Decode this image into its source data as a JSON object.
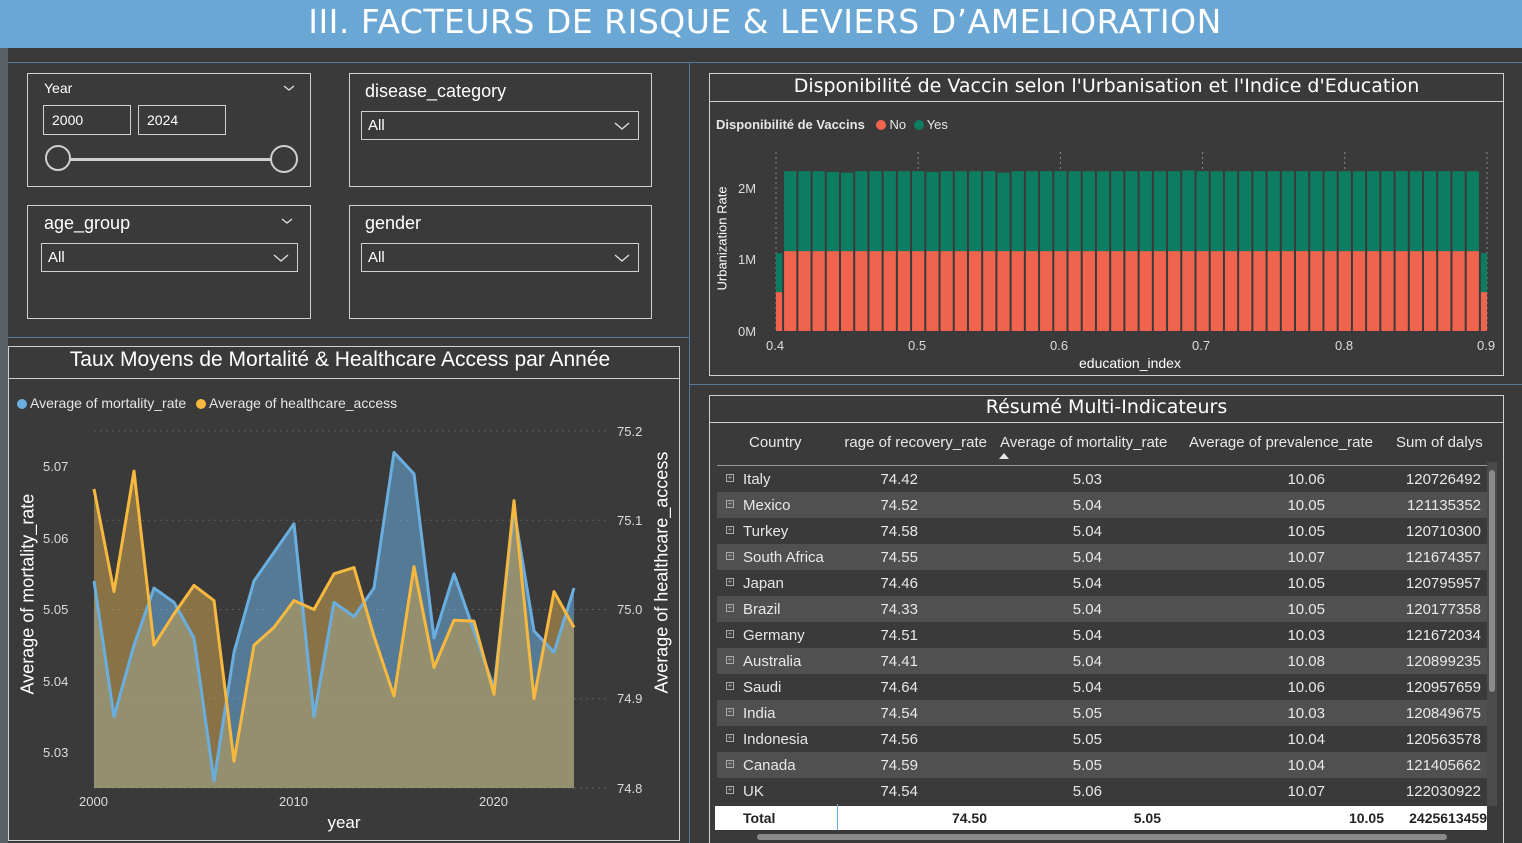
{
  "page": {
    "title": "III. FACTEURS DE RISQUE & LEVIERS D’AMELIORATION"
  },
  "colors": {
    "header": "#6aa7d5",
    "no": "#f0644f",
    "yes": "#0d7d62",
    "mortality": "#6aaee0",
    "healthcare": "#f7b840",
    "background": "#3a3a3a"
  },
  "slicers": {
    "year": {
      "label": "Year",
      "from": "2000",
      "to": "2024"
    },
    "disease_category": {
      "label": "disease_category",
      "value": "All"
    },
    "age_group": {
      "label": "age_group",
      "value": "All"
    },
    "gender": {
      "label": "gender",
      "value": "All"
    }
  },
  "vaccine_chart": {
    "title": "Disponibilité de Vaccin selon l'Urbanisation et l'Indice d'Education",
    "legend_title": "Disponibilité de Vaccins",
    "legend_items": [
      "No",
      "Yes"
    ],
    "ylabel": "Urbanization Rate",
    "xlabel": "education_index",
    "yticks": [
      "0M",
      "1M",
      "2M"
    ],
    "xticks": [
      "0.4",
      "0.5",
      "0.6",
      "0.7",
      "0.8",
      "0.9"
    ]
  },
  "line_chart": {
    "title": "Taux Moyens de Mortalité & Healthcare Access par Année",
    "legend_items": [
      "Average of mortality_rate",
      "Average of healthcare_access"
    ],
    "ylabel_left": "Average of mortality_rate",
    "ylabel_right": "Average of healthcare_access",
    "xlabel": "year",
    "yticks_left": [
      "5.03",
      "5.04",
      "5.05",
      "5.06",
      "5.07"
    ],
    "yticks_right": [
      "74.8",
      "74.9",
      "75.0",
      "75.1",
      "75.2"
    ],
    "xticks": [
      "2000",
      "2010",
      "2020"
    ]
  },
  "chart_data": [
    {
      "type": "line",
      "title": "Taux Moyens de Mortalité & Healthcare Access par Année",
      "xlabel": "year",
      "ylabel": "Average of mortality_rate",
      "x": [
        2000,
        2001,
        2002,
        2003,
        2004,
        2005,
        2006,
        2007,
        2008,
        2009,
        2010,
        2011,
        2012,
        2013,
        2014,
        2015,
        2016,
        2017,
        2018,
        2019,
        2020,
        2021,
        2022,
        2023,
        2024
      ],
      "series": [
        {
          "name": "Average of mortality_rate",
          "axis": "left",
          "values": [
            5.054,
            5.035,
            5.045,
            5.053,
            5.051,
            5.046,
            5.026,
            5.044,
            5.054,
            5.058,
            5.062,
            5.035,
            5.051,
            5.049,
            5.053,
            5.072,
            5.069,
            5.046,
            5.055,
            5.047,
            5.039,
            5.064,
            5.047,
            5.044,
            5.053
          ]
        },
        {
          "name": "Average of healthcare_access",
          "axis": "right",
          "values": [
            75.135,
            75.02,
            75.155,
            74.96,
            74.995,
            75.027,
            75.01,
            74.83,
            74.96,
            74.98,
            75.01,
            75.0,
            75.04,
            75.047,
            74.97,
            74.903,
            75.048,
            74.935,
            74.988,
            74.987,
            74.905,
            75.122,
            74.9,
            75.02,
            74.98
          ]
        }
      ],
      "ylim_left": [
        5.025,
        5.075
      ],
      "ylim_right": [
        74.8,
        75.2
      ],
      "grid": true,
      "legend": "top-left"
    },
    {
      "type": "bar",
      "stacked": true,
      "title": "Disponibilité de Vaccin selon l'Urbanisation et l'Indice d'Education",
      "xlabel": "education_index",
      "ylabel": "Urbanization Rate",
      "x": [
        0.4,
        0.41,
        0.42,
        0.43,
        0.44,
        0.45,
        0.46,
        0.47,
        0.48,
        0.49,
        0.5,
        0.51,
        0.52,
        0.53,
        0.54,
        0.55,
        0.56,
        0.57,
        0.58,
        0.59,
        0.6,
        0.61,
        0.62,
        0.63,
        0.64,
        0.65,
        0.66,
        0.67,
        0.68,
        0.69,
        0.7,
        0.71,
        0.72,
        0.73,
        0.74,
        0.75,
        0.76,
        0.77,
        0.78,
        0.79,
        0.8,
        0.81,
        0.82,
        0.83,
        0.84,
        0.85,
        0.86,
        0.87,
        0.88,
        0.89,
        0.9
      ],
      "series": [
        {
          "name": "No",
          "values": [
            540000,
            1110000,
            1110000,
            1110000,
            1110000,
            1110000,
            1110000,
            1110000,
            1110000,
            1110000,
            1110000,
            1110000,
            1110000,
            1110000,
            1110000,
            1110000,
            1110000,
            1110000,
            1110000,
            1110000,
            1110000,
            1110000,
            1110000,
            1110000,
            1110000,
            1110000,
            1110000,
            1110000,
            1110000,
            1110000,
            1110000,
            1110000,
            1110000,
            1110000,
            1110000,
            1110000,
            1110000,
            1110000,
            1110000,
            1110000,
            1110000,
            1110000,
            1110000,
            1110000,
            1110000,
            1110000,
            1110000,
            1110000,
            1110000,
            1110000,
            540000
          ]
        },
        {
          "name": "Yes",
          "values": [
            540000,
            1110000,
            1110000,
            1110000,
            1100000,
            1090000,
            1110000,
            1110000,
            1110000,
            1110000,
            1110000,
            1100000,
            1110000,
            1110000,
            1110000,
            1110000,
            1090000,
            1110000,
            1110000,
            1110000,
            1110000,
            1110000,
            1110000,
            1110000,
            1110000,
            1110000,
            1110000,
            1110000,
            1110000,
            1120000,
            1110000,
            1110000,
            1110000,
            1110000,
            1110000,
            1110000,
            1110000,
            1110000,
            1110000,
            1110000,
            1110000,
            1110000,
            1110000,
            1110000,
            1110000,
            1110000,
            1110000,
            1110000,
            1110000,
            1110000,
            540000
          ]
        }
      ],
      "ylim": [
        0,
        2300000
      ],
      "legend": "top-left"
    }
  ],
  "table": {
    "title": "Résumé Multi-Indicateurs",
    "columns": [
      "Country",
      "rage of recovery_rate",
      "Average of mortality_rate",
      "Average of prevalence_rate",
      "Sum of dalys"
    ],
    "rows": [
      [
        "Italy",
        "74.42",
        "5.03",
        "10.06",
        "120726492"
      ],
      [
        "Mexico",
        "74.52",
        "5.04",
        "10.05",
        "121135352"
      ],
      [
        "Turkey",
        "74.58",
        "5.04",
        "10.05",
        "120710300"
      ],
      [
        "South Africa",
        "74.55",
        "5.04",
        "10.07",
        "121674357"
      ],
      [
        "Japan",
        "74.46",
        "5.04",
        "10.05",
        "120795957"
      ],
      [
        "Brazil",
        "74.33",
        "5.04",
        "10.05",
        "120177358"
      ],
      [
        "Germany",
        "74.51",
        "5.04",
        "10.03",
        "121672034"
      ],
      [
        "Australia",
        "74.41",
        "5.04",
        "10.08",
        "120899235"
      ],
      [
        "Saudi",
        "74.64",
        "5.04",
        "10.06",
        "120957659"
      ],
      [
        "India",
        "74.54",
        "5.05",
        "10.03",
        "120849675"
      ],
      [
        "Indonesia",
        "74.56",
        "5.05",
        "10.04",
        "120563578"
      ],
      [
        "Canada",
        "74.59",
        "5.05",
        "10.04",
        "121405662"
      ],
      [
        "UK",
        "74.54",
        "5.06",
        "10.07",
        "122030922"
      ]
    ],
    "total": [
      "Total",
      "74.50",
      "5.05",
      "10.05",
      "2425613459"
    ]
  }
}
